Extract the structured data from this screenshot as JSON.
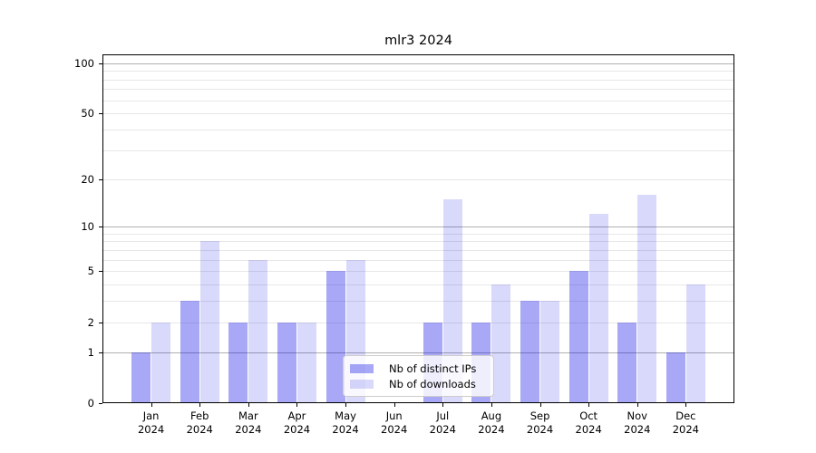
{
  "title": "mlr3 2024",
  "chart_data": {
    "type": "bar",
    "title": "mlr3 2024",
    "categories": [
      "Jan",
      "Feb",
      "Mar",
      "Apr",
      "May",
      "Jun",
      "Jul",
      "Aug",
      "Sep",
      "Oct",
      "Nov",
      "Dec"
    ],
    "category_year": "2024",
    "series": [
      {
        "name": "Nb of distinct IPs",
        "key": "distinct-ips",
        "base_color": "#0000e6",
        "alpha": 0.34,
        "values": [
          1,
          3,
          2,
          2,
          5,
          0,
          2,
          2,
          3,
          5,
          2,
          1
        ]
      },
      {
        "name": "Nb of downloads",
        "key": "downloads",
        "base_color": "#0000e6",
        "alpha": 0.15,
        "values": [
          2,
          8,
          6,
          2,
          6,
          0,
          15,
          4,
          3,
          12,
          16,
          4
        ]
      }
    ],
    "y_scale": "log10(1+x)",
    "ylim": [
      0,
      113
    ],
    "y_tick_values": [
      0,
      1,
      2,
      5,
      10,
      20,
      50,
      100
    ],
    "y_tick_labels": [
      "0",
      "1",
      "2",
      "5",
      "10",
      "20",
      "50",
      "100"
    ],
    "y_grid_major": [
      1,
      10,
      100
    ],
    "y_grid_minor": [
      2,
      3,
      4,
      5,
      6,
      7,
      8,
      9,
      20,
      30,
      40,
      50,
      60,
      70,
      80,
      90
    ],
    "legend_position": "lower center",
    "grid": "on",
    "colors": {
      "grid_major": "#b0b0b0",
      "grid_minor": "#e7e7e7",
      "axis": "#000000",
      "background": "#ffffff",
      "bar_distinct_ips_rendered": "#a9a9f7",
      "bar_downloads_rendered": "#d9d9fb"
    }
  }
}
